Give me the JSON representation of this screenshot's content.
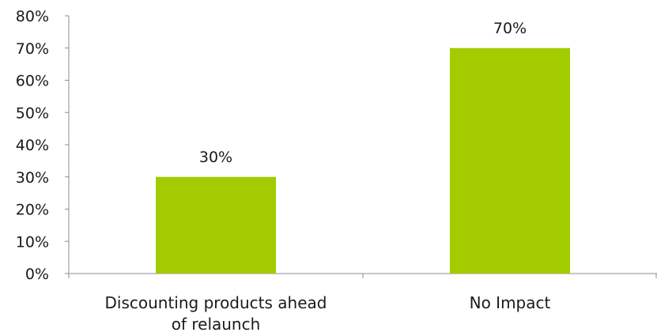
{
  "chart_data": {
    "type": "bar",
    "categories": [
      [
        "Discounting products ahead",
        "of relaunch"
      ],
      [
        "No Impact"
      ]
    ],
    "values": [
      30,
      70
    ],
    "data_labels": [
      "30%",
      "70%"
    ],
    "y_ticks": [
      "0%",
      "10%",
      "20%",
      "30%",
      "40%",
      "50%",
      "60%",
      "70%",
      "80%"
    ],
    "ylim": [
      0,
      80
    ],
    "title": "",
    "xlabel": "",
    "ylabel": "",
    "grid": false,
    "legend": "none",
    "bar_color": "#a3cc00"
  }
}
